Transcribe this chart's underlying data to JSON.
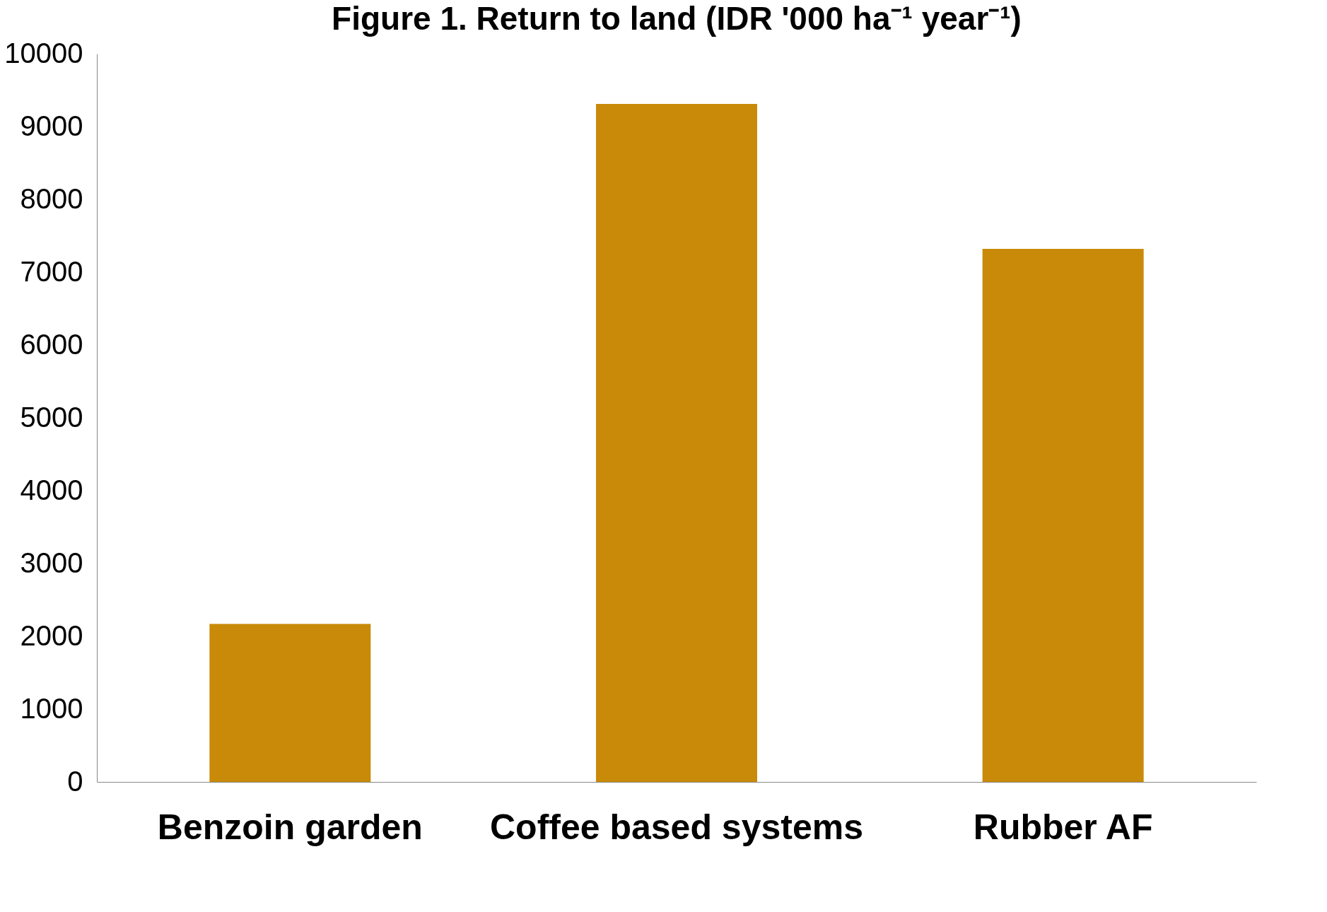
{
  "chart_data": {
    "type": "bar",
    "title": "Figure 1. Return to land (IDR '000 ha⁻¹ year⁻¹)",
    "categories": [
      "Benzoin garden",
      "Coffee based systems",
      "Rubber AF"
    ],
    "values": [
      2170,
      9310,
      7320
    ],
    "color": "#c88a08",
    "ylim": [
      0,
      10000
    ],
    "yticks": [
      0,
      1000,
      2000,
      3000,
      4000,
      5000,
      6000,
      7000,
      8000,
      9000,
      10000
    ],
    "grid": false
  }
}
